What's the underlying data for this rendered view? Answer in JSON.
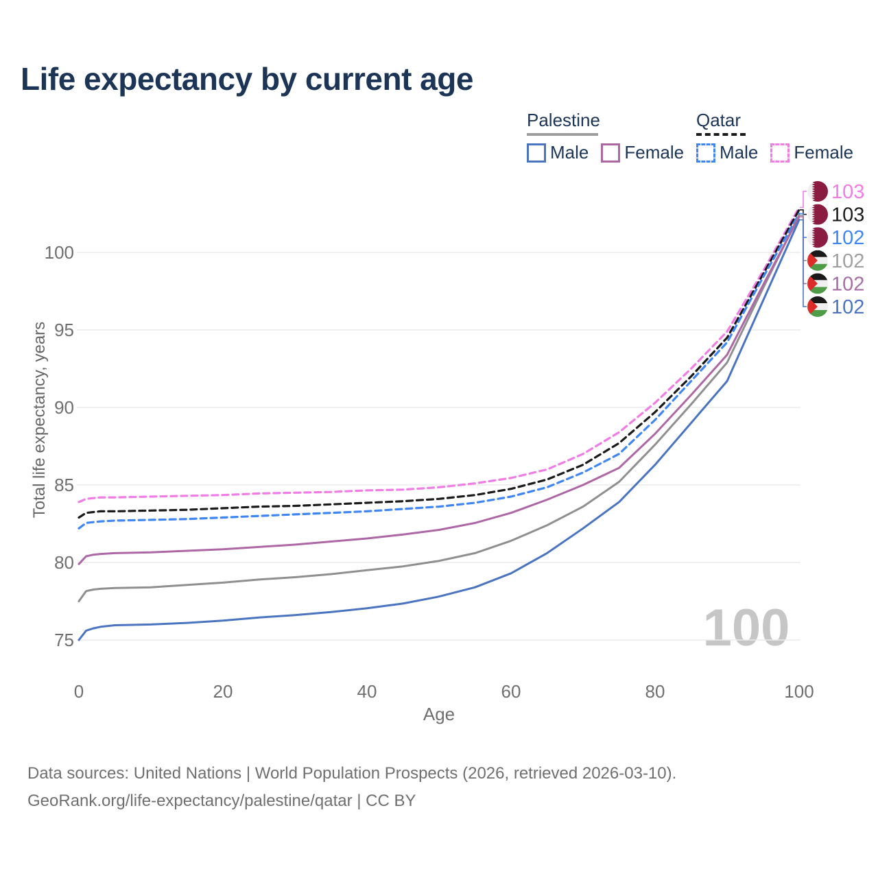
{
  "title": "Life expectancy by current age",
  "watermark": "100",
  "legend": {
    "groups": [
      {
        "title": "Palestine",
        "line_style": "solid",
        "underline_color": "#9e9e9e",
        "items": [
          {
            "label": "Male",
            "color": "#4a74c0",
            "dash": false
          },
          {
            "label": "Female",
            "color": "#ad67a5",
            "dash": false
          }
        ]
      },
      {
        "title": "Qatar",
        "line_style": "dashed",
        "underline_color": "#1a1a1a",
        "items": [
          {
            "label": "Male",
            "color": "#3f86f2",
            "dash": true
          },
          {
            "label": "Female",
            "color": "#f07ce6",
            "dash": true
          }
        ]
      }
    ]
  },
  "footer": {
    "line1": "Data sources: United Nations | World Population Prospects (2026, retrieved 2026-03-10).",
    "line2": "GeoRank.org/life-expectancy/palestine/qatar | CC BY"
  },
  "flag_colors": {
    "qatar": {
      "maroon": "#8a1b41",
      "white": "#f0f0f0"
    },
    "palestine": {
      "black": "#1a1a1a",
      "white": "#f0f0f0",
      "green": "#4e9c45",
      "red": "#dd2d2a"
    }
  },
  "chart_data": {
    "type": "line",
    "title": "Life expectancy by current age",
    "xlabel": "Age",
    "ylabel": "Total life expectancy, years",
    "x_ticks": [
      0,
      20,
      40,
      60,
      80,
      100
    ],
    "y_ticks": [
      75,
      80,
      85,
      90,
      95,
      100
    ],
    "xlim": [
      0,
      100
    ],
    "ylim": [
      73,
      104
    ],
    "grid": "horizontal-only",
    "legend_position": "top-right",
    "ages": [
      0,
      1,
      2,
      3,
      5,
      10,
      15,
      20,
      25,
      30,
      35,
      40,
      45,
      50,
      55,
      60,
      65,
      70,
      75,
      80,
      85,
      90,
      95,
      100
    ],
    "series": [
      {
        "name": "Qatar Female",
        "country": "Qatar",
        "sex": "female",
        "color": "#f07ce6",
        "label_color": "#f07ce6",
        "dash": true,
        "flag": "qatar",
        "end_label": "103",
        "values": [
          83.9,
          84.1,
          84.15,
          84.2,
          84.2,
          84.25,
          84.3,
          84.35,
          84.45,
          84.5,
          84.55,
          84.65,
          84.7,
          84.85,
          85.1,
          85.45,
          86.0,
          87.0,
          88.4,
          90.3,
          92.5,
          94.9,
          98.8,
          102.9
        ]
      },
      {
        "name": "Qatar Both sexes",
        "country": "Qatar",
        "sex": "all",
        "color": "#1a1a1a",
        "label_color": "#1c1c1c",
        "dash": true,
        "flag": "qatar",
        "end_label": "103",
        "values": [
          82.9,
          83.2,
          83.25,
          83.3,
          83.3,
          83.35,
          83.4,
          83.5,
          83.6,
          83.65,
          83.75,
          83.85,
          83.95,
          84.1,
          84.35,
          84.75,
          85.35,
          86.3,
          87.7,
          89.7,
          92.0,
          94.5,
          98.6,
          102.75
        ]
      },
      {
        "name": "Qatar Male",
        "country": "Qatar",
        "sex": "male",
        "color": "#3f86f2",
        "label_color": "#3f86f2",
        "dash": true,
        "flag": "qatar",
        "end_label": "102",
        "values": [
          82.2,
          82.55,
          82.6,
          82.65,
          82.7,
          82.75,
          82.8,
          82.9,
          83.0,
          83.1,
          83.2,
          83.3,
          83.45,
          83.6,
          83.85,
          84.25,
          84.85,
          85.8,
          87.0,
          89.2,
          91.7,
          94.2,
          98.4,
          102.5
        ]
      },
      {
        "name": "Palestine Both sexes",
        "country": "Palestine",
        "sex": "all",
        "color": "#8f8f8f",
        "label_color": "#a0a0a0",
        "dash": false,
        "flag": "palestine",
        "end_label": "102",
        "values": [
          77.5,
          78.15,
          78.25,
          78.3,
          78.35,
          78.4,
          78.55,
          78.7,
          78.9,
          79.05,
          79.25,
          79.5,
          79.75,
          80.1,
          80.6,
          81.4,
          82.4,
          83.6,
          85.2,
          87.6,
          90.2,
          92.9,
          97.7,
          102.4
        ]
      },
      {
        "name": "Palestine Female",
        "country": "Palestine",
        "sex": "female",
        "color": "#ad67a5",
        "label_color": "#a76fa8",
        "dash": false,
        "flag": "palestine",
        "end_label": "102",
        "values": [
          79.9,
          80.4,
          80.5,
          80.55,
          80.6,
          80.65,
          80.75,
          80.85,
          81.0,
          81.15,
          81.35,
          81.55,
          81.8,
          82.1,
          82.55,
          83.2,
          84.05,
          85.0,
          86.1,
          88.3,
          90.8,
          93.4,
          97.9,
          102.3
        ]
      },
      {
        "name": "Palestine Male",
        "country": "Palestine",
        "sex": "male",
        "color": "#4a74c0",
        "label_color": "#4a74c0",
        "dash": false,
        "flag": "palestine",
        "end_label": "102",
        "values": [
          75.0,
          75.6,
          75.75,
          75.85,
          75.95,
          76.0,
          76.1,
          76.25,
          76.45,
          76.6,
          76.8,
          77.05,
          77.35,
          77.8,
          78.4,
          79.3,
          80.6,
          82.2,
          83.9,
          86.3,
          89.0,
          91.7,
          96.9,
          102.1
        ]
      }
    ]
  }
}
